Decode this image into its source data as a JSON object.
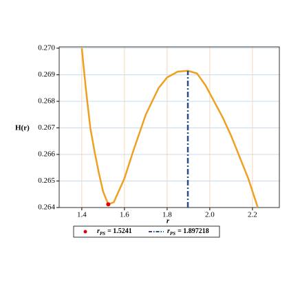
{
  "chart_data": {
    "type": "line",
    "y_label": "H(r)",
    "x_label": "r",
    "xlim": [
      1.294,
      2.326
    ],
    "ylim": [
      0.264,
      0.27005
    ],
    "xticks": [
      1.4,
      1.6,
      1.8,
      {
        "value": 2.0,
        "label": "2.0"
      },
      2.2
    ],
    "yticks": [
      0.264,
      0.265,
      0.266,
      0.267,
      0.268,
      0.269,
      {
        "value": 0.27,
        "label": "0.270"
      }
    ],
    "grid": true,
    "x": [
      1.4,
      1.42,
      1.44,
      1.46,
      1.48,
      1.5,
      1.5241,
      1.55,
      1.6,
      1.64,
      1.7,
      1.76,
      1.8,
      1.85,
      1.897,
      1.94,
      1.98,
      2.02,
      2.06,
      2.1,
      2.14,
      2.18,
      2.225
    ],
    "series": [
      {
        "color": "#f0a020",
        "values": [
          0.27,
          0.2684,
          0.267,
          0.2661,
          0.2653,
          0.2646,
          0.26412,
          0.2642,
          0.2651,
          0.2661,
          0.2675,
          0.2685,
          0.2689,
          0.26912,
          0.26915,
          0.26905,
          0.2686,
          0.268,
          0.2674,
          0.2667,
          0.2659,
          0.2651,
          0.264
        ]
      }
    ],
    "point": {
      "x": 1.5241,
      "y": 0.26412,
      "color": "#e00000"
    },
    "vline": {
      "x": 1.897218,
      "top": 0.26915,
      "color": "#2a4a8a"
    },
    "legend": [
      {
        "symbol": "r",
        "sub": "PS",
        "text": "= 1.5241"
      },
      {
        "symbol": "r",
        "sub": "PS",
        "text": "= 1.897218"
      }
    ]
  }
}
